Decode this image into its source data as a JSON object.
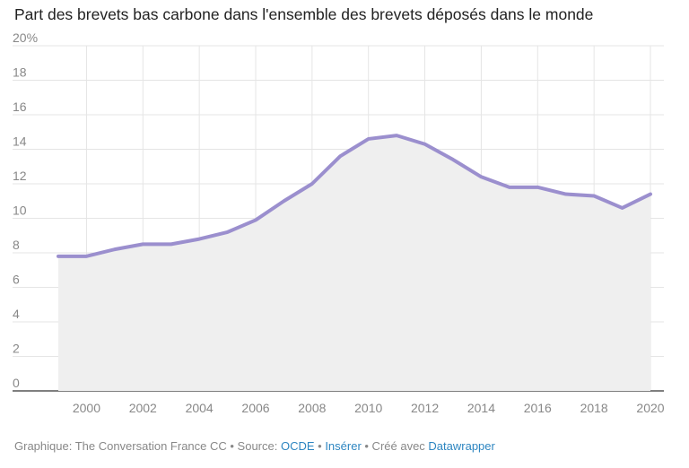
{
  "chart_data": {
    "type": "area",
    "title": "Part des brevets bas carbone dans l'ensemble des brevets déposés dans le monde",
    "xlabel": "",
    "ylabel": "",
    "x": [
      1999,
      2000,
      2001,
      2002,
      2003,
      2004,
      2005,
      2006,
      2007,
      2008,
      2009,
      2010,
      2011,
      2012,
      2013,
      2014,
      2015,
      2016,
      2017,
      2018,
      2019,
      2020
    ],
    "series": [
      {
        "name": "Part des brevets bas carbone (%)",
        "color": "#9b8fce",
        "values": [
          7.8,
          7.8,
          8.2,
          8.5,
          8.5,
          8.8,
          9.2,
          9.9,
          11.0,
          12.0,
          13.6,
          14.6,
          14.8,
          14.3,
          13.4,
          12.4,
          11.8,
          11.8,
          11.4,
          11.3,
          10.6,
          11.4
        ]
      }
    ],
    "ylim": [
      0,
      20
    ],
    "xlim": [
      1999,
      2020
    ],
    "y_ticks": [
      "0",
      "2",
      "4",
      "6",
      "8",
      "10",
      "12",
      "14",
      "16",
      "18",
      "20%"
    ],
    "y_tick_values": [
      0,
      2,
      4,
      6,
      8,
      10,
      12,
      14,
      16,
      18,
      20
    ],
    "x_ticks": [
      "2000",
      "2002",
      "2004",
      "2006",
      "2008",
      "2010",
      "2012",
      "2014",
      "2016",
      "2018",
      "2020"
    ],
    "x_tick_values": [
      2000,
      2002,
      2004,
      2006,
      2008,
      2010,
      2012,
      2014,
      2016,
      2018,
      2020
    ],
    "grid": true,
    "area_fill": "#efefef",
    "grid_color": "#e5e5e5"
  },
  "footer": {
    "prefix": "Graphique: The Conversation France CC • Source: ",
    "source_link": "OCDE",
    "sep1": " • ",
    "embed_link": "Insérer",
    "sep2": " • Créé avec ",
    "tool_link": "Datawrapper"
  }
}
